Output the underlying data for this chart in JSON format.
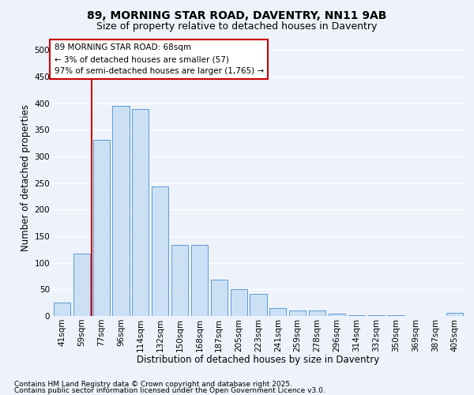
{
  "title1": "89, MORNING STAR ROAD, DAVENTRY, NN11 9AB",
  "title2": "Size of property relative to detached houses in Daventry",
  "xlabel": "Distribution of detached houses by size in Daventry",
  "ylabel": "Number of detached properties",
  "categories": [
    "41sqm",
    "59sqm",
    "77sqm",
    "96sqm",
    "114sqm",
    "132sqm",
    "150sqm",
    "168sqm",
    "187sqm",
    "205sqm",
    "223sqm",
    "241sqm",
    "259sqm",
    "278sqm",
    "296sqm",
    "314sqm",
    "332sqm",
    "350sqm",
    "369sqm",
    "387sqm",
    "405sqm"
  ],
  "values": [
    25,
    118,
    332,
    395,
    390,
    243,
    133,
    133,
    68,
    50,
    42,
    15,
    10,
    10,
    4,
    1,
    1,
    1,
    0,
    0,
    6
  ],
  "bar_color": "#cce0f5",
  "bar_edge_color": "#5b9bd5",
  "vline_x": 1.5,
  "vline_color": "#cc0000",
  "annotation_text": "89 MORNING STAR ROAD: 68sqm\n← 3% of detached houses are smaller (57)\n97% of semi-detached houses are larger (1,765) →",
  "annotation_box_color": "#ffffff",
  "annotation_box_edge": "#cc0000",
  "ylim": [
    0,
    520
  ],
  "yticks": [
    0,
    50,
    100,
    150,
    200,
    250,
    300,
    350,
    400,
    450,
    500
  ],
  "footer1": "Contains HM Land Registry data © Crown copyright and database right 2025.",
  "footer2": "Contains public sector information licensed under the Open Government Licence v3.0.",
  "background_color": "#eef3fb",
  "grid_color": "#ffffff",
  "title1_fontsize": 10,
  "title2_fontsize": 9,
  "axis_label_fontsize": 8.5,
  "tick_fontsize": 7.5,
  "annotation_fontsize": 7.5,
  "footer_fontsize": 6.5
}
